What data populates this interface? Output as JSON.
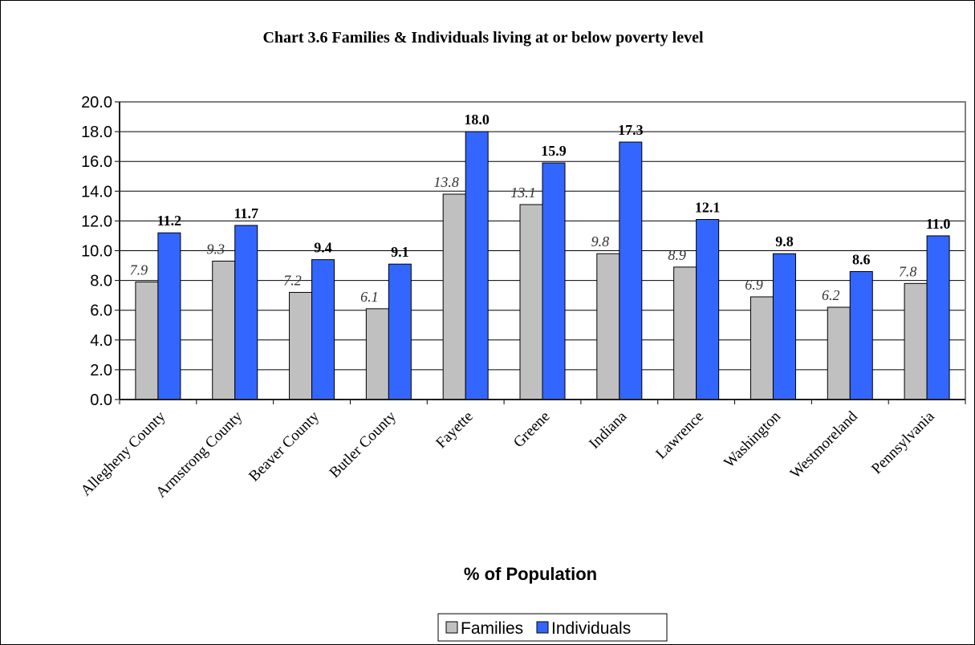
{
  "chart_data": {
    "type": "bar",
    "title": "Chart 3.6 Families & Individuals living at or below poverty level",
    "xlabel": "% of Population",
    "ylabel": "",
    "ylim": [
      0,
      20
    ],
    "ytick_step": 2,
    "ytick_labels": [
      "0.0",
      "2.0",
      "4.0",
      "6.0",
      "8.0",
      "10.0",
      "12.0",
      "14.0",
      "16.0",
      "18.0",
      "20.0"
    ],
    "grid": true,
    "legend_position": "bottom",
    "categories": [
      "Allegheny County",
      "Armstrong County",
      "Beaver County",
      "Butler County",
      "Fayette",
      "Greene",
      "Indiana",
      "Lawrence",
      "Washington",
      "Westmoreland",
      "Pennsylvania"
    ],
    "series": [
      {
        "name": "Families",
        "color": "#c0c0c0",
        "values": [
          7.9,
          9.3,
          7.2,
          6.1,
          13.8,
          13.1,
          9.8,
          8.9,
          6.9,
          6.2,
          7.8
        ],
        "data_labels": [
          "7.9",
          "9.3",
          "7.2",
          "6.1",
          "13.8",
          "13.1",
          "9.8",
          "8.9",
          "6.9",
          "6.2",
          "7.8"
        ]
      },
      {
        "name": "Individuals",
        "color": "#3366ff",
        "values": [
          11.2,
          11.7,
          9.4,
          9.1,
          18.0,
          15.9,
          17.3,
          12.1,
          9.8,
          8.6,
          11.0
        ],
        "data_labels": [
          "11.2",
          "11.7",
          "9.4",
          "9.1",
          "18.0",
          "15.9",
          "17.3",
          "12.1",
          "9.8",
          "8.6",
          "11.0"
        ]
      }
    ]
  }
}
